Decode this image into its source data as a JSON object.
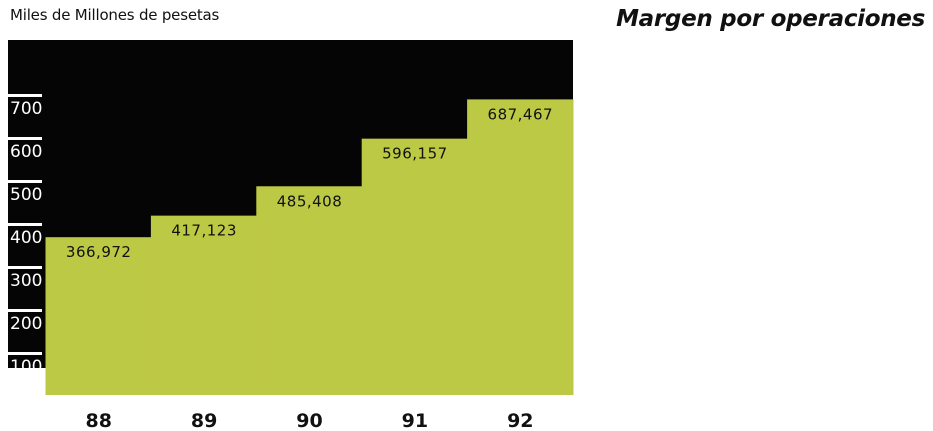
{
  "chart_data": {
    "type": "bar",
    "title": "Margen por operaciones",
    "ylabel": "Miles de Millones de pesetas",
    "xlabel": "",
    "categories": [
      "88",
      "89",
      "90",
      "91",
      "92"
    ],
    "values": [
      366.972,
      417.123,
      485.408,
      596.157,
      687.467
    ],
    "value_labels": [
      "366,972",
      "417,123",
      "485,408",
      "596,157",
      "687,467"
    ],
    "yticks": [
      "100",
      "200",
      "300",
      "400",
      "500",
      "600",
      "700"
    ],
    "ytick_values": [
      100,
      200,
      300,
      400,
      500,
      600,
      700
    ],
    "ylim": [
      0,
      700
    ],
    "grid": false,
    "legend": "none",
    "colors": {
      "bar": "#bcc944",
      "background_panel": "#050505",
      "tick_text": "#ffffff",
      "text": "#111111"
    }
  }
}
